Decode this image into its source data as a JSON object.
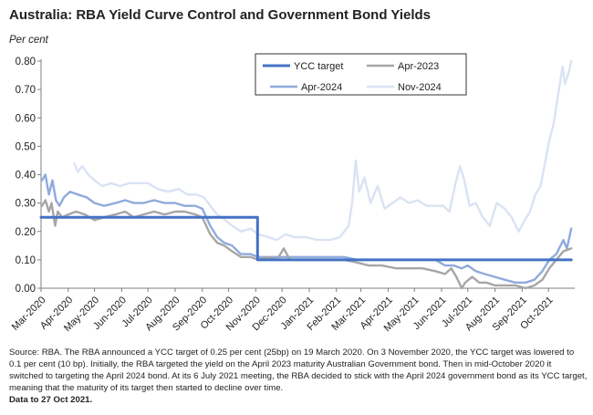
{
  "header": {
    "title": "Australia: RBA Yield Curve Control and Government Bond Yields",
    "unit": "Per cent"
  },
  "chart_data": {
    "type": "line",
    "title": "Australia: RBA Yield Curve Control and Government Bond Yields",
    "ylabel": "Per cent",
    "ylim": [
      0,
      0.8
    ],
    "yticks": [
      "0.00",
      "0.10",
      "0.20",
      "0.30",
      "0.40",
      "0.50",
      "0.60",
      "0.70",
      "0.80"
    ],
    "xrange": [
      "2020-03-01",
      "2021-10-31"
    ],
    "xticks": [
      "Mar-2020",
      "Apr-2020",
      "May-2020",
      "Jun-2020",
      "Jul-2020",
      "Aug-2020",
      "Sep-2020",
      "Oct-2020",
      "Nov-2020",
      "Dec-2020",
      "Jan-2021",
      "Feb-2021",
      "Mar-2021",
      "Apr-2021",
      "May-2021",
      "Jun-2021",
      "Jul-2021",
      "Aug-2021",
      "Sep-2021",
      "Oct-2021"
    ],
    "grid": false,
    "legend": "top-center",
    "series": [
      {
        "name": "YCC target",
        "color": "#4472c4",
        "step": true,
        "points": [
          [
            "2020-03-01",
            0.25
          ],
          [
            "2020-11-03",
            0.25
          ],
          [
            "2020-11-03",
            0.1
          ],
          [
            "2021-10-27",
            0.1
          ]
        ]
      },
      {
        "name": "Apr-2023",
        "color": "#a6a6a6",
        "points": [
          [
            "2020-03-02",
            0.29
          ],
          [
            "2020-03-06",
            0.31
          ],
          [
            "2020-03-10",
            0.27
          ],
          [
            "2020-03-13",
            0.3
          ],
          [
            "2020-03-17",
            0.22
          ],
          [
            "2020-03-20",
            0.27
          ],
          [
            "2020-03-25",
            0.25
          ],
          [
            "2020-04-01",
            0.26
          ],
          [
            "2020-04-10",
            0.27
          ],
          [
            "2020-04-20",
            0.26
          ],
          [
            "2020-05-01",
            0.24
          ],
          [
            "2020-05-12",
            0.25
          ],
          [
            "2020-05-25",
            0.26
          ],
          [
            "2020-06-05",
            0.27
          ],
          [
            "2020-06-15",
            0.25
          ],
          [
            "2020-06-26",
            0.26
          ],
          [
            "2020-07-08",
            0.27
          ],
          [
            "2020-07-20",
            0.26
          ],
          [
            "2020-08-01",
            0.27
          ],
          [
            "2020-08-12",
            0.27
          ],
          [
            "2020-08-24",
            0.26
          ],
          [
            "2020-09-01",
            0.25
          ],
          [
            "2020-09-10",
            0.19
          ],
          [
            "2020-09-18",
            0.16
          ],
          [
            "2020-09-26",
            0.15
          ],
          [
            "2020-10-05",
            0.13
          ],
          [
            "2020-10-15",
            0.11
          ],
          [
            "2020-10-26",
            0.11
          ],
          [
            "2020-11-04",
            0.1
          ],
          [
            "2020-11-15",
            0.11
          ],
          [
            "2020-11-25",
            0.1
          ],
          [
            "2020-12-03",
            0.14
          ],
          [
            "2020-12-10",
            0.1
          ],
          [
            "2020-12-22",
            0.1
          ],
          [
            "2021-01-10",
            0.1
          ],
          [
            "2021-01-25",
            0.1
          ],
          [
            "2021-02-10",
            0.1
          ],
          [
            "2021-02-25",
            0.09
          ],
          [
            "2021-03-10",
            0.08
          ],
          [
            "2021-03-25",
            0.08
          ],
          [
            "2021-04-10",
            0.07
          ],
          [
            "2021-04-25",
            0.07
          ],
          [
            "2021-05-10",
            0.07
          ],
          [
            "2021-05-25",
            0.06
          ],
          [
            "2021-06-05",
            0.05
          ],
          [
            "2021-06-12",
            0.07
          ],
          [
            "2021-06-18",
            0.04
          ],
          [
            "2021-06-24",
            0.0
          ],
          [
            "2021-06-28",
            0.02
          ],
          [
            "2021-07-06",
            0.04
          ],
          [
            "2021-07-14",
            0.02
          ],
          [
            "2021-07-22",
            0.02
          ],
          [
            "2021-08-01",
            0.01
          ],
          [
            "2021-08-12",
            0.01
          ],
          [
            "2021-08-24",
            0.01
          ],
          [
            "2021-09-05",
            0.0
          ],
          [
            "2021-09-15",
            0.01
          ],
          [
            "2021-09-24",
            0.03
          ],
          [
            "2021-10-02",
            0.07
          ],
          [
            "2021-10-10",
            0.1
          ],
          [
            "2021-10-18",
            0.13
          ],
          [
            "2021-10-27",
            0.14
          ]
        ]
      },
      {
        "name": "Apr-2024",
        "color": "#8faadc",
        "points": [
          [
            "2020-03-02",
            0.38
          ],
          [
            "2020-03-06",
            0.4
          ],
          [
            "2020-03-10",
            0.33
          ],
          [
            "2020-03-14",
            0.38
          ],
          [
            "2020-03-18",
            0.31
          ],
          [
            "2020-03-22",
            0.29
          ],
          [
            "2020-03-27",
            0.32
          ],
          [
            "2020-04-03",
            0.34
          ],
          [
            "2020-04-12",
            0.33
          ],
          [
            "2020-04-22",
            0.32
          ],
          [
            "2020-05-01",
            0.3
          ],
          [
            "2020-05-12",
            0.29
          ],
          [
            "2020-05-25",
            0.3
          ],
          [
            "2020-06-05",
            0.31
          ],
          [
            "2020-06-15",
            0.3
          ],
          [
            "2020-06-26",
            0.3
          ],
          [
            "2020-07-08",
            0.31
          ],
          [
            "2020-07-20",
            0.3
          ],
          [
            "2020-08-01",
            0.3
          ],
          [
            "2020-08-12",
            0.29
          ],
          [
            "2020-08-24",
            0.29
          ],
          [
            "2020-09-01",
            0.28
          ],
          [
            "2020-09-10",
            0.22
          ],
          [
            "2020-09-18",
            0.18
          ],
          [
            "2020-09-26",
            0.16
          ],
          [
            "2020-10-05",
            0.15
          ],
          [
            "2020-10-15",
            0.12
          ],
          [
            "2020-10-26",
            0.12
          ],
          [
            "2020-11-04",
            0.11
          ],
          [
            "2020-11-15",
            0.11
          ],
          [
            "2020-11-25",
            0.11
          ],
          [
            "2020-12-05",
            0.11
          ],
          [
            "2020-12-15",
            0.11
          ],
          [
            "2020-12-28",
            0.11
          ],
          [
            "2021-01-10",
            0.11
          ],
          [
            "2021-01-25",
            0.11
          ],
          [
            "2021-02-10",
            0.11
          ],
          [
            "2021-02-25",
            0.1
          ],
          [
            "2021-03-10",
            0.1
          ],
          [
            "2021-03-25",
            0.1
          ],
          [
            "2021-04-10",
            0.1
          ],
          [
            "2021-04-25",
            0.1
          ],
          [
            "2021-05-10",
            0.1
          ],
          [
            "2021-05-25",
            0.1
          ],
          [
            "2021-06-05",
            0.08
          ],
          [
            "2021-06-15",
            0.08
          ],
          [
            "2021-06-24",
            0.07
          ],
          [
            "2021-07-01",
            0.08
          ],
          [
            "2021-07-10",
            0.06
          ],
          [
            "2021-07-20",
            0.05
          ],
          [
            "2021-08-01",
            0.04
          ],
          [
            "2021-08-12",
            0.03
          ],
          [
            "2021-08-24",
            0.02
          ],
          [
            "2021-09-05",
            0.02
          ],
          [
            "2021-09-15",
            0.03
          ],
          [
            "2021-09-24",
            0.06
          ],
          [
            "2021-10-02",
            0.1
          ],
          [
            "2021-10-10",
            0.12
          ],
          [
            "2021-10-18",
            0.17
          ],
          [
            "2021-10-22",
            0.14
          ],
          [
            "2021-10-27",
            0.21
          ]
        ]
      },
      {
        "name": "Nov-2024",
        "color": "#dae3f3",
        "points": [
          [
            "2020-04-08",
            0.44
          ],
          [
            "2020-04-12",
            0.41
          ],
          [
            "2020-04-17",
            0.43
          ],
          [
            "2020-04-24",
            0.4
          ],
          [
            "2020-05-01",
            0.38
          ],
          [
            "2020-05-10",
            0.36
          ],
          [
            "2020-05-20",
            0.37
          ],
          [
            "2020-05-30",
            0.36
          ],
          [
            "2020-06-10",
            0.37
          ],
          [
            "2020-06-20",
            0.37
          ],
          [
            "2020-07-01",
            0.37
          ],
          [
            "2020-07-12",
            0.35
          ],
          [
            "2020-07-24",
            0.34
          ],
          [
            "2020-08-05",
            0.35
          ],
          [
            "2020-08-15",
            0.33
          ],
          [
            "2020-08-25",
            0.33
          ],
          [
            "2020-09-03",
            0.32
          ],
          [
            "2020-09-10",
            0.29
          ],
          [
            "2020-09-18",
            0.26
          ],
          [
            "2020-09-27",
            0.24
          ],
          [
            "2020-10-05",
            0.22
          ],
          [
            "2020-10-15",
            0.2
          ],
          [
            "2020-10-26",
            0.21
          ],
          [
            "2020-11-04",
            0.19
          ],
          [
            "2020-11-15",
            0.18
          ],
          [
            "2020-11-25",
            0.17
          ],
          [
            "2020-12-05",
            0.19
          ],
          [
            "2020-12-15",
            0.18
          ],
          [
            "2020-12-28",
            0.18
          ],
          [
            "2021-01-10",
            0.17
          ],
          [
            "2021-01-25",
            0.17
          ],
          [
            "2021-02-05",
            0.18
          ],
          [
            "2021-02-15",
            0.22
          ],
          [
            "2021-02-19",
            0.3
          ],
          [
            "2021-02-23",
            0.45
          ],
          [
            "2021-02-27",
            0.34
          ],
          [
            "2021-03-05",
            0.39
          ],
          [
            "2021-03-12",
            0.3
          ],
          [
            "2021-03-20",
            0.36
          ],
          [
            "2021-03-28",
            0.28
          ],
          [
            "2021-04-06",
            0.3
          ],
          [
            "2021-04-15",
            0.32
          ],
          [
            "2021-04-25",
            0.3
          ],
          [
            "2021-05-05",
            0.31
          ],
          [
            "2021-05-15",
            0.29
          ],
          [
            "2021-05-25",
            0.29
          ],
          [
            "2021-06-03",
            0.29
          ],
          [
            "2021-06-10",
            0.27
          ],
          [
            "2021-06-17",
            0.37
          ],
          [
            "2021-06-22",
            0.43
          ],
          [
            "2021-06-27",
            0.38
          ],
          [
            "2021-07-03",
            0.29
          ],
          [
            "2021-07-10",
            0.3
          ],
          [
            "2021-07-18",
            0.25
          ],
          [
            "2021-07-26",
            0.22
          ],
          [
            "2021-08-03",
            0.3
          ],
          [
            "2021-08-12",
            0.28
          ],
          [
            "2021-08-20",
            0.25
          ],
          [
            "2021-08-28",
            0.2
          ],
          [
            "2021-09-04",
            0.24
          ],
          [
            "2021-09-10",
            0.27
          ],
          [
            "2021-09-16",
            0.33
          ],
          [
            "2021-09-22",
            0.36
          ],
          [
            "2021-09-27",
            0.44
          ],
          [
            "2021-10-02",
            0.52
          ],
          [
            "2021-10-07",
            0.58
          ],
          [
            "2021-10-12",
            0.68
          ],
          [
            "2021-10-17",
            0.78
          ],
          [
            "2021-10-20",
            0.72
          ],
          [
            "2021-10-24",
            0.76
          ],
          [
            "2021-10-27",
            0.8
          ]
        ]
      }
    ]
  },
  "footnote": {
    "text": "Source: RBA. The RBA announced a YCC target of 0.25 per cent (25bp) on 19 March 2020. On 3 November 2020, the YCC target was lowered to 0.1 per cent (10 bp). Initially, the RBA targeted the yield on the April 2023 maturity Australian Government bond. Then in mid-October 2020 it switched to targeting the April 2024 bond. At its 6 July 2021 meeting, the RBA decided to stick with the April 2024 government bond as its YCC target, meaning that the maturity of its target then started to decline over time.",
    "date_note": "Data to 27 Oct 2021."
  }
}
